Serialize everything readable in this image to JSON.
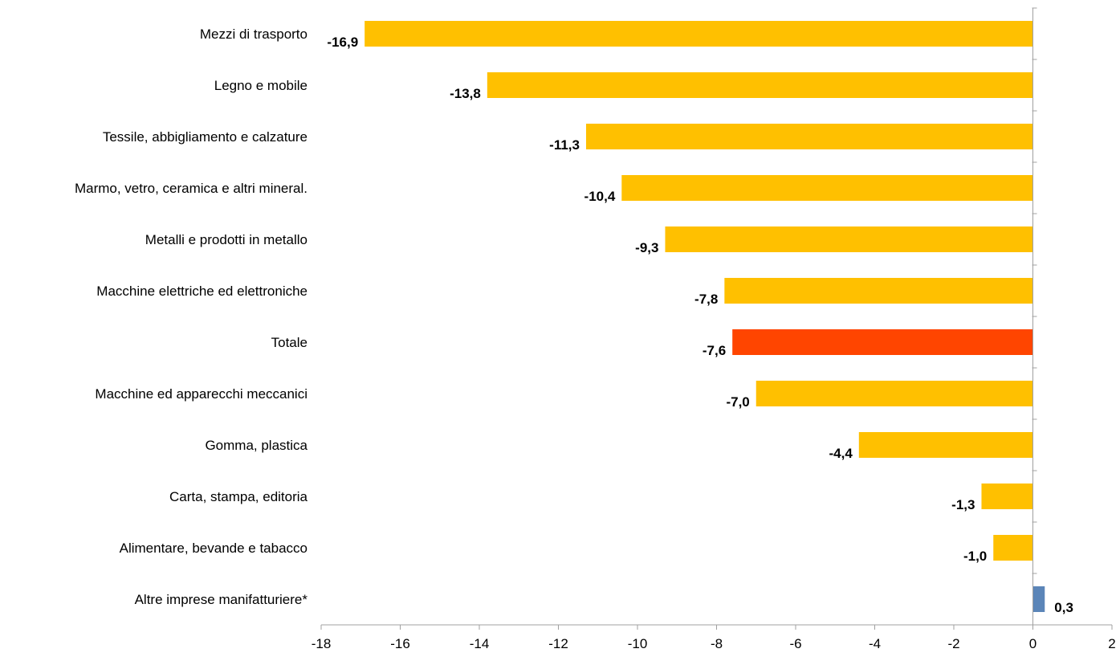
{
  "chart_data": {
    "type": "bar",
    "orientation": "horizontal",
    "title": "",
    "xlabel": "",
    "ylabel": "",
    "xlim": [
      -18,
      2
    ],
    "x_ticks": [
      -18,
      -16,
      -14,
      -12,
      -10,
      -8,
      -6,
      -4,
      -2,
      0,
      2
    ],
    "grid": false,
    "legend": "none",
    "categories": [
      "Mezzi di trasporto",
      "Legno e mobile",
      "Tessile, abbigliamento e calzature",
      "Marmo, vetro, ceramica e altri mineral.",
      "Metalli e prodotti in metallo",
      "Macchine elettriche ed elettroniche",
      "Totale",
      "Macchine ed apparecchi meccanici",
      "Gomma, plastica",
      "Carta, stampa, editoria",
      "Alimentare, bevande e tabacco",
      "Altre imprese manifatturiere*"
    ],
    "values": [
      -16.9,
      -13.8,
      -11.3,
      -10.4,
      -9.3,
      -7.8,
      -7.6,
      -7.0,
      -4.4,
      -1.3,
      -1.0,
      0.3
    ],
    "value_labels": [
      "-16,9",
      "-13,8",
      "-11,3",
      "-10,4",
      "-9,3",
      "-7,8",
      "-7,6",
      "-7,0",
      "-4,4",
      "-1,3",
      "-1,0",
      "0,3"
    ],
    "tick_labels": [
      "-18",
      "-16",
      "-14",
      "-12",
      "-10",
      "-8",
      "-6",
      "-4",
      "-2",
      "0",
      "2"
    ],
    "colors": {
      "default": "#FFC000",
      "total": "#FF4500",
      "positive": "#5B85B8",
      "axis": "#A0A0A0"
    }
  }
}
